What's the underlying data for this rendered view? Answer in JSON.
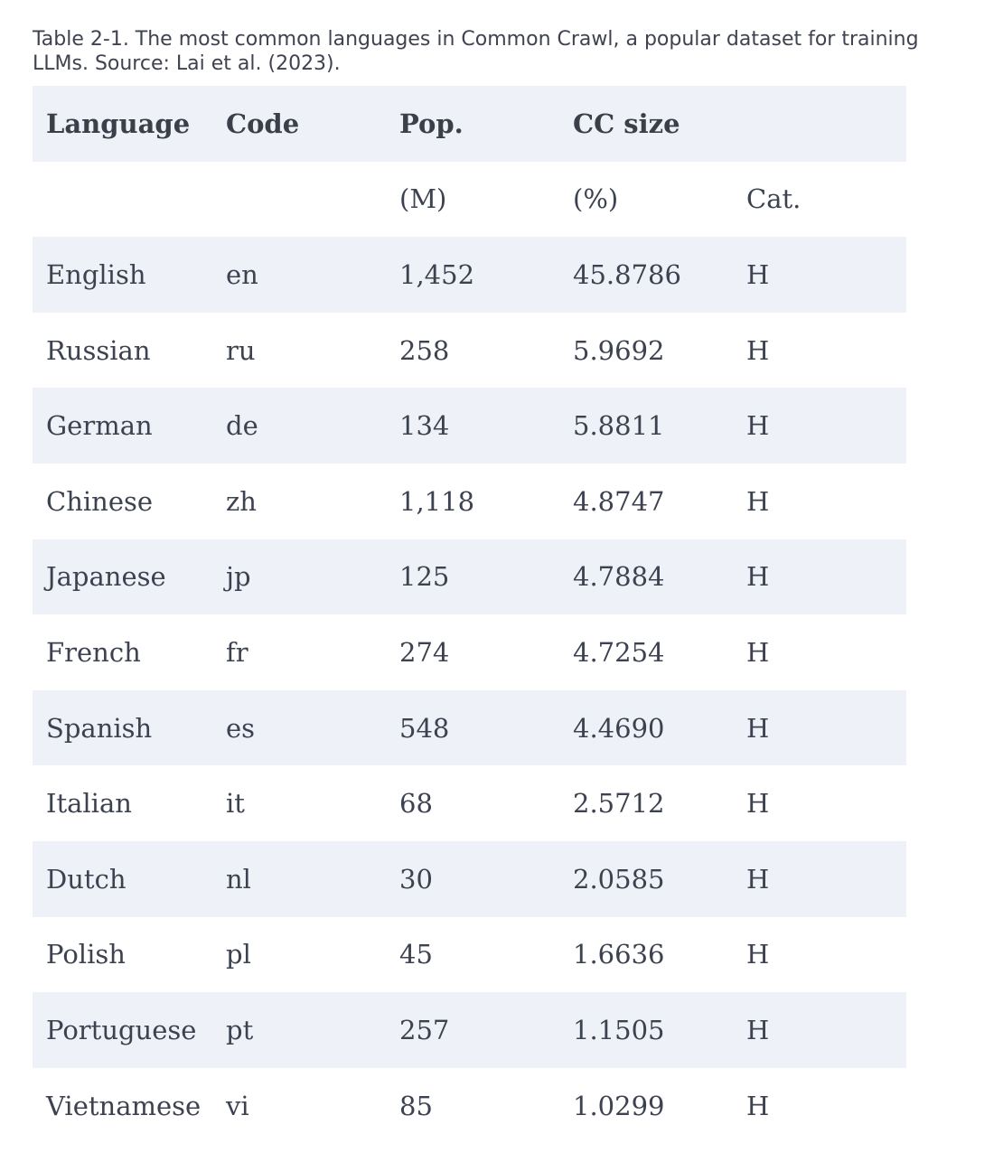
{
  "caption": "Table 2-1. The most common languages in Common Crawl, a popular dataset for training LLMs. Source: Lai et al. (2023).",
  "header_row_1": [
    "Language",
    "Code",
    "Pop.",
    "CC size",
    ""
  ],
  "header_row_2": [
    "",
    "",
    "(M)",
    "(%)",
    "Cat."
  ],
  "rows": [
    [
      "English",
      "en",
      "1,452",
      "45.8786",
      "H"
    ],
    [
      "Russian",
      "ru",
      "258",
      "5.9692",
      "H"
    ],
    [
      "German",
      "de",
      "134",
      "5.8811",
      "H"
    ],
    [
      "Chinese",
      "zh",
      "1,118",
      "4.8747",
      "H"
    ],
    [
      "Japanese",
      "jp",
      "125",
      "4.7884",
      "H"
    ],
    [
      "French",
      "fr",
      "274",
      "4.7254",
      "H"
    ],
    [
      "Spanish",
      "es",
      "548",
      "4.4690",
      "H"
    ],
    [
      "Italian",
      "it",
      "68",
      "2.5712",
      "H"
    ],
    [
      "Dutch",
      "nl",
      "30",
      "2.0585",
      "H"
    ],
    [
      "Polish",
      "pl",
      "45",
      "1.6636",
      "H"
    ],
    [
      "Portuguese",
      "pt",
      "257",
      "1.1505",
      "H"
    ],
    [
      "Vietnamese",
      "vi",
      "85",
      "1.0299",
      "H"
    ]
  ]
}
